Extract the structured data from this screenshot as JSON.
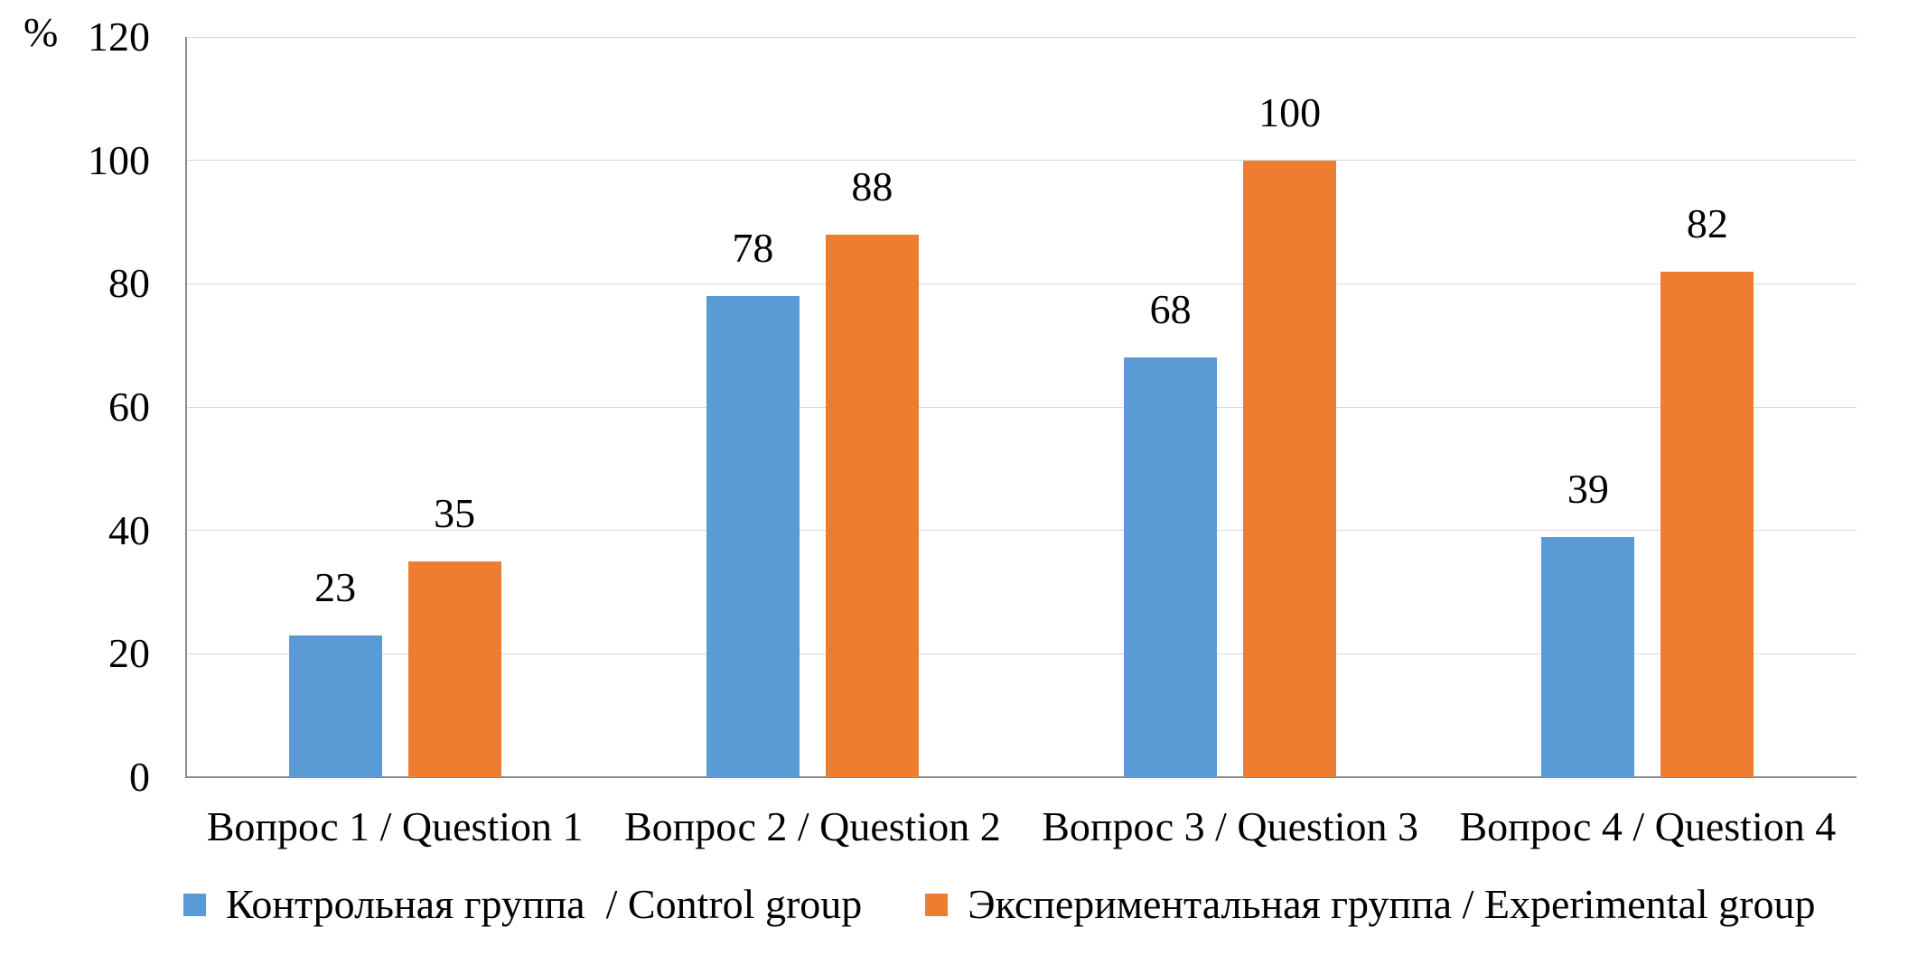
{
  "chart": {
    "unit_label": "%",
    "accent_blue": "#5B9BD5",
    "accent_orange": "#ED7D31",
    "gridline_color": "#d9d9d9",
    "axis_color": "#8c8c8c"
  },
  "chart_data": {
    "type": "bar",
    "title": "",
    "xlabel": "",
    "ylabel": "%",
    "categories": [
      "Вопрос 1 / Question 1",
      "Вопрос 2 / Question 2",
      "Вопрос 3 / Question 3",
      "Вопрос 4 / Question 4"
    ],
    "series": [
      {
        "name": "Контрольная группа  / Control group",
        "color": "#5B9BD5",
        "values": [
          23,
          78,
          68,
          39
        ]
      },
      {
        "name": "Экспериментальная группа / Experimental group",
        "color": "#ED7D31",
        "values": [
          35,
          88,
          100,
          82
        ]
      }
    ],
    "ylim": [
      0,
      120
    ],
    "yticks": [
      0,
      20,
      40,
      60,
      80,
      100,
      120
    ],
    "grid": true,
    "data_labels": true,
    "legend_position": "bottom"
  }
}
